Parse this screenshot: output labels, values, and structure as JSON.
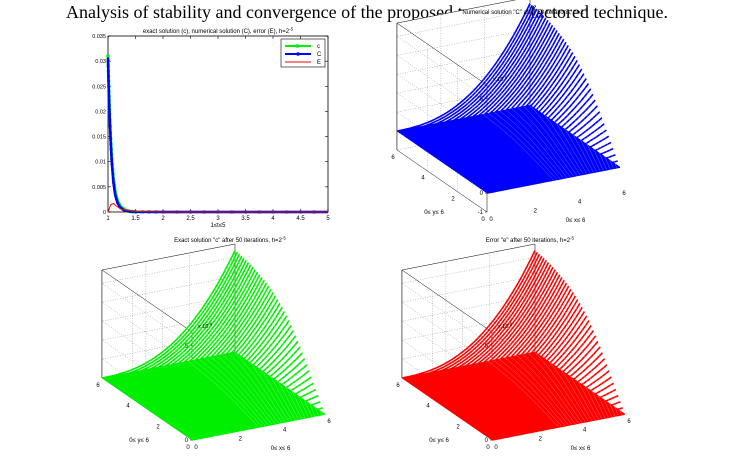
{
  "caption": "Analysis of stability and convergence of the proposed two-level factored technique.",
  "colors": {
    "exact": "#00ee00",
    "numerical": "#0000ff",
    "error": "#ff0000",
    "axis": "#000000"
  },
  "chart_data": [
    {
      "type": "line",
      "title": "exact solution (c), numerical solution (C), error (E), h=2^-5",
      "xlabel": "1≤t≤5",
      "ylabel": "",
      "xlim": [
        1,
        5
      ],
      "ylim": [
        0,
        0.035
      ],
      "x_ticks": [
        "1",
        "1.5",
        "2",
        "2.5",
        "3",
        "3.5",
        "4",
        "4.5",
        "5"
      ],
      "y_ticks": [
        "0",
        "0.005",
        "0.01",
        "0.015",
        "0.02",
        "0.025",
        "0.03",
        "0.035"
      ],
      "legend": {
        "placement": "top-right",
        "entries": [
          "c",
          "C",
          "E"
        ]
      },
      "series": [
        {
          "name": "c",
          "color": "#00ee00",
          "marker": "square",
          "x": [
            1,
            1.01,
            1.02,
            1.03,
            1.05,
            1.07,
            1.1,
            1.13,
            1.17,
            1.22,
            1.3,
            1.4,
            1.5,
            2,
            3,
            4,
            5
          ],
          "values": [
            0.031,
            0.027,
            0.023,
            0.0195,
            0.0145,
            0.0105,
            0.0065,
            0.004,
            0.0022,
            0.0011,
            0.0004,
            0.0001,
            3e-05,
            0,
            0,
            0,
            0
          ]
        },
        {
          "name": "C",
          "color": "#0000ff",
          "marker": "dot",
          "x": [
            1,
            1.01,
            1.02,
            1.03,
            1.05,
            1.07,
            1.1,
            1.13,
            1.17,
            1.22,
            1.3,
            1.4,
            1.5,
            2,
            3,
            4,
            5
          ],
          "values": [
            0.0305,
            0.026,
            0.022,
            0.0185,
            0.0135,
            0.0095,
            0.0058,
            0.0035,
            0.0019,
            0.0009,
            0.0003,
            0.0001,
            2e-05,
            0,
            0,
            0,
            0
          ]
        },
        {
          "name": "E",
          "color": "#ff0000",
          "marker": "none",
          "x": [
            1,
            1.05,
            1.1,
            1.15,
            1.25,
            1.5,
            2,
            3,
            5
          ],
          "values": [
            0,
            0.0015,
            0.0017,
            0.0012,
            0.0005,
            0.0001,
            0,
            0,
            0
          ]
        }
      ]
    },
    {
      "type": "surface",
      "title": "Numerical solution \"C\" after 50 iterations, h=2^-5",
      "color": "#0000ff",
      "exponent_label": "x 10^-6",
      "z_ticks": [
        "-1",
        "0",
        "1",
        "2",
        "3",
        "4",
        "5"
      ],
      "y_ticks": [
        "0",
        "2",
        "4",
        "6"
      ],
      "x_ticks": [
        "0",
        "2",
        "4",
        "6"
      ],
      "xlabel": "0≤ x≤ 6",
      "ylabel": "0≤ y≤ 6",
      "zlim": [
        -1,
        5.7
      ]
    },
    {
      "type": "surface",
      "title": "Exact solution \"c\" after 50 iterations, h=2^-5",
      "color": "#00ee00",
      "exponent_label": "x 10^-6",
      "z_ticks": [
        "0",
        "1",
        "2",
        "3",
        "4",
        "5"
      ],
      "y_ticks": [
        "0",
        "2",
        "4",
        "6"
      ],
      "x_ticks": [
        "0",
        "2",
        "4",
        "6"
      ],
      "xlabel": "0≤ x≤ 6",
      "ylabel": "0≤ y≤ 6",
      "zlim": [
        0,
        5.7
      ]
    },
    {
      "type": "surface",
      "title": "Error \"e\" after 50 iterations, h=2^-5",
      "color": "#ff0000",
      "exponent_label": "x 10^-8",
      "z_ticks": [
        "0",
        "1",
        "2",
        "3",
        "4",
        "5"
      ],
      "y_ticks": [
        "0",
        "2",
        "4",
        "6"
      ],
      "x_ticks": [
        "0",
        "2",
        "4",
        "6"
      ],
      "xlabel": "0≤ x≤ 6",
      "ylabel": "0≤ y≤ 6",
      "zlim": [
        0,
        5.7
      ]
    }
  ]
}
